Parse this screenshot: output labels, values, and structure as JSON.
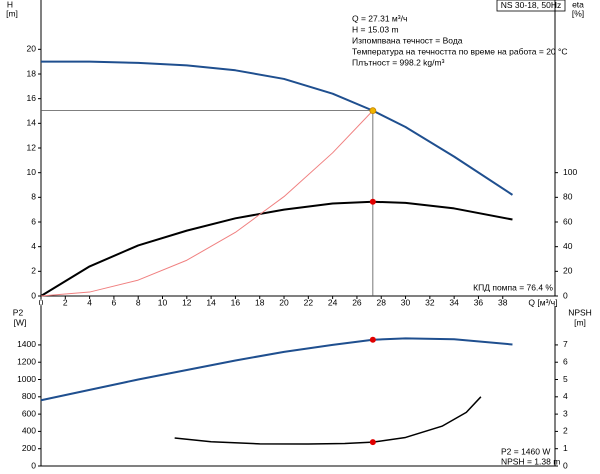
{
  "chart_data": [
    {
      "type": "line",
      "model": "NS 30-18, 50Hz",
      "info": [
        "Q = 27.31 м³/ч",
        "H = 15.03 m",
        "Изпомпвана течност = Вода",
        "Температура на течността по време на работа = 20 °C",
        "Плътност = 998.2 kg/m³"
      ],
      "ylabel": [
        "H",
        "[m]"
      ],
      "y2label": [
        "eta",
        "[%]"
      ],
      "xlabel": "Q [м³/ч]",
      "efficiency_note": "КПД помпа = 76.4 %",
      "xlim": [
        0,
        42.3
      ],
      "xticks": [
        0,
        2,
        4,
        6,
        8,
        10,
        12,
        14,
        16,
        18,
        20,
        22,
        24,
        26,
        28,
        30,
        32,
        34,
        36,
        38
      ],
      "ylim": [
        0,
        24
      ],
      "yticks": [
        0,
        2,
        4,
        6,
        8,
        10,
        12,
        14,
        16,
        18,
        20
      ],
      "y2lim": [
        0,
        240
      ],
      "y2ticks": [
        0,
        20,
        40,
        60,
        80,
        100
      ],
      "series": [
        {
          "color": "#1f4f8f",
          "width": 2,
          "x": [
            0,
            4,
            8,
            12,
            16,
            20,
            24,
            27.31,
            30,
            34,
            38.8
          ],
          "values": [
            19.0,
            19.0,
            18.9,
            18.7,
            18.3,
            17.6,
            16.4,
            15.03,
            13.7,
            11.3,
            8.2
          ],
          "marker": {
            "index": 7,
            "color": "#f0b400",
            "crosshair": true
          }
        },
        {
          "color": "#000000",
          "width": 2,
          "axis": "y2",
          "x": [
            0,
            4,
            8,
            12,
            16,
            20,
            24,
            27.31,
            30,
            34,
            38.8
          ],
          "values": [
            0,
            24,
            41,
            53,
            63,
            70,
            75,
            76.4,
            75.5,
            71,
            62
          ],
          "marker": {
            "index": 7,
            "color": "#e00000"
          }
        },
        {
          "color": "#f08080",
          "width": 1,
          "x": [
            0,
            4,
            8,
            12,
            16,
            20,
            24,
            27.31
          ],
          "values": [
            0,
            0.32,
            1.29,
            2.9,
            5.16,
            8.06,
            11.61,
            15.03
          ]
        }
      ]
    },
    {
      "type": "line",
      "ylabel": [
        "P2",
        "[W]"
      ],
      "y2label": [
        "NPSH",
        "[m]"
      ],
      "notes": [
        "P2 = 1460 W",
        "NPSH = 1.38 m"
      ],
      "xlim": [
        0,
        42.3
      ],
      "ylim": [
        0,
        1850
      ],
      "yticks": [
        0,
        200,
        400,
        600,
        800,
        1000,
        1200,
        1400
      ],
      "y2lim": [
        0,
        9.25
      ],
      "y2ticks": [
        0,
        1,
        2,
        3,
        4,
        5,
        6,
        7
      ],
      "series": [
        {
          "color": "#1f4f8f",
          "width": 2,
          "x": [
            0,
            4,
            8,
            12,
            16,
            20,
            24,
            27.31,
            30,
            34,
            38.8
          ],
          "values": [
            760,
            880,
            1000,
            1110,
            1220,
            1320,
            1400,
            1460,
            1475,
            1465,
            1405
          ],
          "marker": {
            "index": 7,
            "color": "#e00000"
          }
        },
        {
          "color": "#000000",
          "width": 1.5,
          "axis": "y2",
          "x": [
            11,
            14,
            18,
            22,
            25,
            27.31,
            30,
            33,
            35,
            36.2
          ],
          "values": [
            1.62,
            1.4,
            1.28,
            1.27,
            1.3,
            1.38,
            1.65,
            2.3,
            3.1,
            4.0
          ],
          "marker": {
            "index": 5,
            "color": "#e00000"
          }
        }
      ]
    }
  ]
}
